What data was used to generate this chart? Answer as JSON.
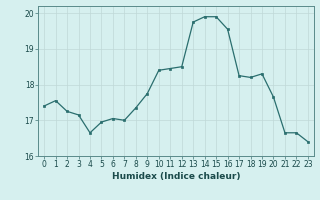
{
  "x": [
    0,
    1,
    2,
    3,
    4,
    5,
    6,
    7,
    8,
    9,
    10,
    11,
    12,
    13,
    14,
    15,
    16,
    17,
    18,
    19,
    20,
    21,
    22,
    23
  ],
  "y": [
    17.4,
    17.55,
    17.25,
    17.15,
    16.65,
    16.95,
    17.05,
    17.0,
    17.35,
    17.75,
    18.4,
    18.45,
    18.5,
    19.75,
    19.9,
    19.9,
    19.55,
    18.25,
    18.2,
    18.3,
    17.65,
    16.65,
    16.65,
    16.4
  ],
  "xlabel": "Humidex (Indice chaleur)",
  "ylabel": "",
  "xlim": [
    -0.5,
    23.5
  ],
  "ylim": [
    16.0,
    20.2
  ],
  "yticks": [
    16,
    17,
    18,
    19,
    20
  ],
  "xticks": [
    0,
    1,
    2,
    3,
    4,
    5,
    6,
    7,
    8,
    9,
    10,
    11,
    12,
    13,
    14,
    15,
    16,
    17,
    18,
    19,
    20,
    21,
    22,
    23
  ],
  "line_color": "#2a6e6e",
  "marker_color": "#2a6e6e",
  "bg_color": "#d6f0ef",
  "grid_color": "#c0d8d8",
  "axis_color": "#5a8a8a",
  "tick_color": "#1a4a4a",
  "label_fontsize": 6.5,
  "tick_fontsize": 5.5
}
